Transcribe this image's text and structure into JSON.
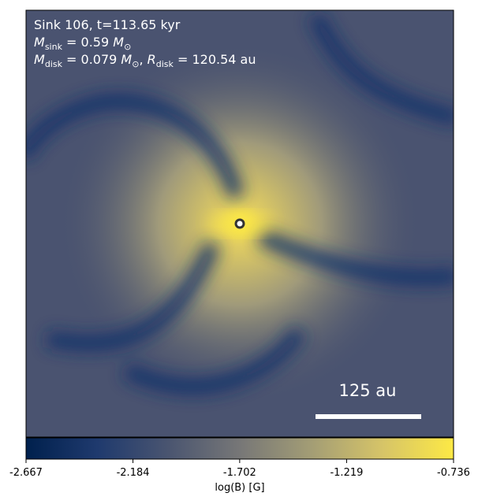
{
  "chart_data": {
    "type": "image",
    "annotation_lines": [
      [
        "Sink 106, t=113.65 kyr"
      ],
      [
        "M",
        "sink",
        " = 0.59 ",
        "M",
        "⊙"
      ],
      [
        "M",
        "disk",
        " = 0.079 ",
        "M",
        "⊙",
        ", ",
        "R",
        "disk",
        " = 120.54 au"
      ]
    ],
    "scale_bar_label": "125 au",
    "colorbar": {
      "label": "log(B) [G]",
      "lim": [
        -2.667,
        -0.736
      ],
      "ticks": [
        -2.667,
        -2.184,
        -1.702,
        -1.219,
        -0.736
      ],
      "colors": [
        "#00204d",
        "#1f3a6e",
        "#4a5570",
        "#777777",
        "#a39d75",
        "#d6c468",
        "#fde945"
      ]
    }
  }
}
